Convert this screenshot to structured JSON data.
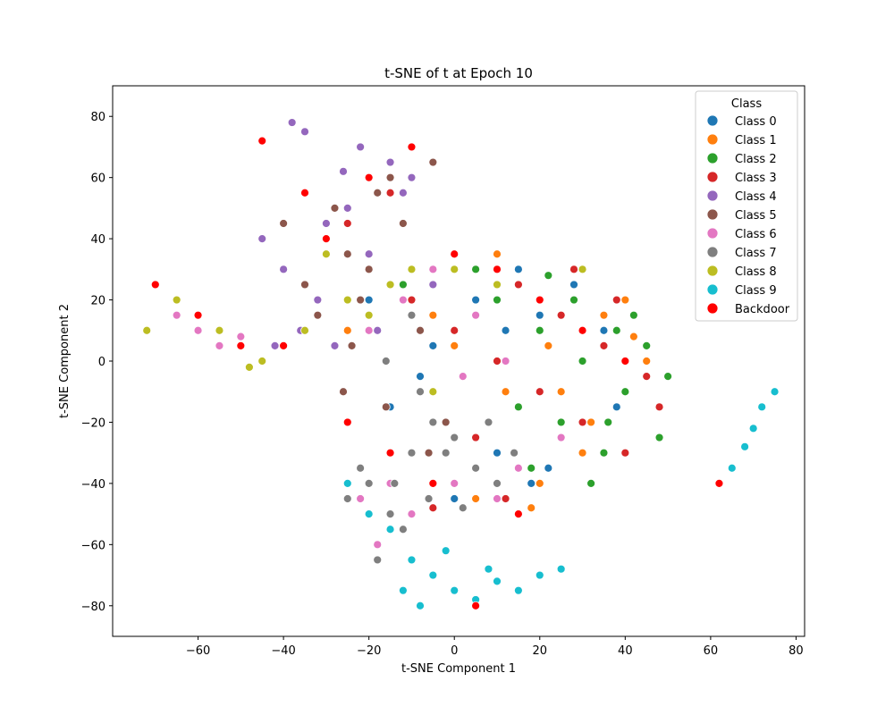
{
  "chart_data": {
    "type": "scatter",
    "title": "t-SNE of t at Epoch 10",
    "xlabel": "t-SNE Component 1",
    "ylabel": "t-SNE Component 2",
    "xlim": [
      -80,
      82
    ],
    "ylim": [
      -90,
      90
    ],
    "xticks": [
      -60,
      -40,
      -20,
      0,
      20,
      40,
      60,
      80
    ],
    "yticks": [
      -80,
      -60,
      -40,
      -20,
      0,
      20,
      40,
      60,
      80
    ],
    "grid": false,
    "legend": {
      "title": "Class",
      "placement": "top-right",
      "entries": [
        "Class 0",
        "Class 1",
        "Class 2",
        "Class 3",
        "Class 4",
        "Class 5",
        "Class 6",
        "Class 7",
        "Class 8",
        "Class 9",
        "Backdoor"
      ]
    },
    "colors": [
      "#1f77b4",
      "#ff7f0e",
      "#2ca02c",
      "#d62728",
      "#9467bd",
      "#8c564b",
      "#e377c2",
      "#7f7f7f",
      "#bcbd22",
      "#17becf",
      "#ff0000"
    ],
    "series": [
      {
        "name": "Class 0",
        "x": [
          5,
          12,
          20,
          30,
          40,
          -5,
          10,
          25,
          -15,
          0,
          35,
          15,
          45,
          8,
          -8,
          28,
          18,
          38,
          -20,
          22
        ],
        "y": [
          20,
          10,
          15,
          0,
          -10,
          5,
          -30,
          -25,
          -15,
          -45,
          10,
          30,
          -5,
          -20,
          -5,
          25,
          -40,
          -15,
          20,
          -35
        ]
      },
      {
        "name": "Class 1",
        "x": [
          0,
          15,
          25,
          35,
          45,
          -10,
          8,
          20,
          30,
          10,
          -25,
          40,
          5,
          22,
          12,
          32,
          -5,
          18,
          42,
          28
        ],
        "y": [
          5,
          25,
          -10,
          15,
          0,
          30,
          -20,
          -40,
          -30,
          35,
          10,
          20,
          -45,
          5,
          -10,
          -20,
          15,
          -48,
          8,
          30
        ]
      },
      {
        "name": "Class 2",
        "x": [
          20,
          30,
          40,
          50,
          10,
          25,
          35,
          45,
          15,
          5,
          28,
          38,
          48,
          18,
          32,
          42,
          -12,
          22,
          12,
          36
        ],
        "y": [
          10,
          0,
          -10,
          -5,
          20,
          -20,
          -30,
          5,
          -15,
          30,
          20,
          10,
          -25,
          -35,
          -40,
          15,
          25,
          28,
          0,
          -20
        ]
      },
      {
        "name": "Class 3",
        "x": [
          -20,
          -10,
          0,
          10,
          20,
          30,
          40,
          -30,
          -15,
          5,
          15,
          25,
          35,
          45,
          -25,
          -5,
          12,
          28,
          38,
          48
        ],
        "y": [
          30,
          20,
          10,
          0,
          -10,
          -20,
          -30,
          40,
          55,
          -25,
          25,
          15,
          5,
          -5,
          45,
          -48,
          -45,
          30,
          20,
          -15
        ]
      },
      {
        "name": "Class 4",
        "x": [
          -35,
          -30,
          -25,
          -20,
          -15,
          -40,
          -10,
          -5,
          -45,
          -38,
          -22,
          -12,
          -32,
          -18,
          -28,
          0,
          -8,
          -42,
          -36,
          -26
        ],
        "y": [
          75,
          45,
          50,
          35,
          65,
          30,
          60,
          25,
          40,
          78,
          70,
          55,
          20,
          10,
          5,
          30,
          -10,
          5,
          10,
          62
        ]
      },
      {
        "name": "Class 5",
        "x": [
          -30,
          -25,
          -20,
          -15,
          -10,
          -5,
          -35,
          -40,
          -28,
          -18,
          -12,
          -22,
          -8,
          -2,
          -32,
          -16,
          -26,
          -6,
          -14,
          -24
        ],
        "y": [
          40,
          35,
          30,
          60,
          70,
          65,
          25,
          45,
          50,
          55,
          45,
          20,
          10,
          -20,
          15,
          -15,
          -10,
          -30,
          -40,
          5
        ]
      },
      {
        "name": "Class 6",
        "x": [
          -65,
          -60,
          -55,
          -50,
          -20,
          -15,
          -10,
          0,
          10,
          20,
          -5,
          5,
          15,
          25,
          -22,
          -18,
          -12,
          -8,
          2,
          12
        ],
        "y": [
          15,
          10,
          5,
          8,
          10,
          -40,
          -50,
          -40,
          -45,
          20,
          30,
          15,
          -35,
          -25,
          -45,
          -60,
          20,
          -10,
          -5,
          0
        ]
      },
      {
        "name": "Class 7",
        "x": [
          -20,
          -15,
          -10,
          -5,
          0,
          5,
          -25,
          -12,
          -18,
          -8,
          -2,
          8,
          -22,
          -14,
          -6,
          2,
          10,
          14,
          -16,
          -10
        ],
        "y": [
          -40,
          -50,
          -30,
          -20,
          -25,
          -35,
          -45,
          -55,
          -65,
          -10,
          -30,
          -20,
          -35,
          -40,
          -45,
          -48,
          -40,
          -30,
          0,
          15
        ]
      },
      {
        "name": "Class 8",
        "x": [
          -70,
          -65,
          -60,
          -55,
          -50,
          -45,
          -40,
          -35,
          -30,
          -25,
          -20,
          -15,
          -10,
          -5,
          0,
          10,
          20,
          30,
          -72,
          -48
        ],
        "y": [
          25,
          20,
          15,
          10,
          5,
          0,
          5,
          10,
          35,
          20,
          15,
          25,
          30,
          -10,
          30,
          25,
          20,
          30,
          10,
          -2
        ]
      },
      {
        "name": "Class 9",
        "x": [
          -25,
          -20,
          -15,
          -10,
          -5,
          0,
          5,
          10,
          15,
          20,
          25,
          65,
          68,
          70,
          72,
          75,
          -12,
          -8,
          -2,
          8
        ],
        "y": [
          -40,
          -50,
          -55,
          -65,
          -70,
          -75,
          -78,
          -72,
          -75,
          -70,
          -68,
          -35,
          -28,
          -22,
          -15,
          -10,
          -75,
          -80,
          -62,
          -68
        ]
      },
      {
        "name": "Backdoor",
        "x": [
          -70,
          -60,
          -50,
          -40,
          -30,
          -20,
          -10,
          0,
          10,
          20,
          30,
          40,
          -45,
          -35,
          -25,
          -15,
          -5,
          5,
          15,
          62
        ],
        "y": [
          25,
          15,
          5,
          5,
          40,
          60,
          70,
          35,
          30,
          20,
          10,
          0,
          72,
          55,
          -20,
          -30,
          -40,
          -80,
          -50,
          -40
        ]
      }
    ]
  }
}
